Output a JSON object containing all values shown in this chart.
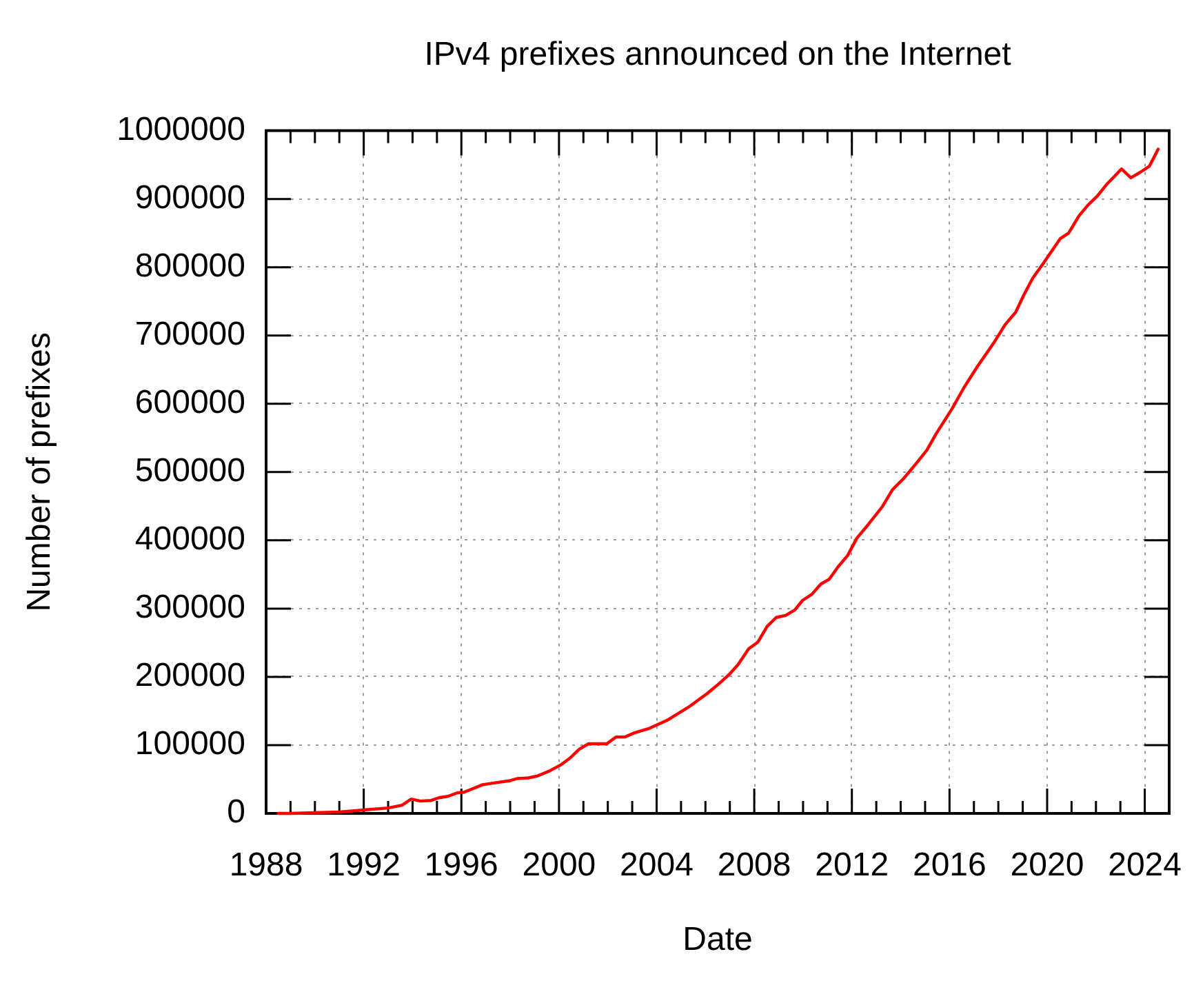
{
  "chart_data": {
    "type": "line",
    "title": "IPv4 prefixes announced on the Internet",
    "xlabel": "Date",
    "ylabel": "Number of prefixes",
    "x": [
      1988.5,
      1989,
      1990,
      1991,
      1992,
      1993,
      1993.57,
      1993.94,
      1994.32,
      1994.76,
      1995.08,
      1995.45,
      1995.83,
      1996.11,
      1996.87,
      1997.43,
      1998,
      1998.28,
      1998.75,
      1999.13,
      1999.6,
      2000.07,
      2000.45,
      2000.83,
      2001.21,
      2001.96,
      2002.34,
      2002.71,
      2003.09,
      2003.66,
      2004.41,
      2005.36,
      2006.05,
      2006.49,
      2006.96,
      2007.34,
      2007.77,
      2008.15,
      2008.53,
      2008.9,
      2009.28,
      2009.66,
      2009.98,
      2010.36,
      2010.73,
      2011.07,
      2011.43,
      2011.83,
      2012.2,
      2012.62,
      2013.24,
      2013.66,
      2014.13,
      2014.6,
      2015.07,
      2015.45,
      2016.11,
      2016.58,
      2017.15,
      2017.81,
      2018.28,
      2018.71,
      2019.04,
      2019.41,
      2019.79,
      2020.54,
      2020.88,
      2021.3,
      2021.67,
      2022.05,
      2022.43,
      2023.05,
      2023.43,
      2023.81,
      2024.19,
      2024.55
    ],
    "series": [
      {
        "color": "#ff0000",
        "values": [
          0,
          0,
          1000,
          2000,
          5000,
          8000,
          12000,
          21000,
          18000,
          19000,
          23000,
          25000,
          30000,
          31000,
          42000,
          45000,
          48000,
          51000,
          52000,
          55000,
          62000,
          71000,
          81000,
          94000,
          102000,
          102000,
          112000,
          112000,
          118000,
          124000,
          136000,
          157000,
          175000,
          188000,
          203000,
          218000,
          241000,
          251000,
          274000,
          287000,
          290000,
          298000,
          312000,
          321000,
          336000,
          343000,
          361000,
          378000,
          403000,
          421000,
          449000,
          474000,
          491000,
          511000,
          532000,
          556000,
          593000,
          623000,
          655000,
          689000,
          716000,
          734000,
          759000,
          784000,
          803000,
          842000,
          850000,
          875000,
          891000,
          904000,
          921000,
          944000,
          931000,
          939000,
          948000,
          973000
        ]
      }
    ],
    "xlim": [
      1988,
      2025
    ],
    "xticks": [
      1988,
      {
        "value": 1989,
        "label": null
      },
      {
        "value": 1990,
        "label": null
      },
      {
        "value": 1991,
        "label": null
      },
      1992,
      {
        "value": 1993,
        "label": null
      },
      {
        "value": 1994,
        "label": null
      },
      {
        "value": 1995,
        "label": null
      },
      1996,
      {
        "value": 1997,
        "label": null
      },
      {
        "value": 1998,
        "label": null
      },
      {
        "value": 1999,
        "label": null
      },
      2000,
      {
        "value": 2001,
        "label": null
      },
      {
        "value": 2002,
        "label": null
      },
      {
        "value": 2003,
        "label": null
      },
      2004,
      {
        "value": 2005,
        "label": null
      },
      {
        "value": 2006,
        "label": null
      },
      {
        "value": 2007,
        "label": null
      },
      2008,
      {
        "value": 2009,
        "label": null
      },
      {
        "value": 2010,
        "label": null
      },
      {
        "value": 2011,
        "label": null
      },
      2012,
      {
        "value": 2013,
        "label": null
      },
      {
        "value": 2014,
        "label": null
      },
      {
        "value": 2015,
        "label": null
      },
      2016,
      {
        "value": 2017,
        "label": null
      },
      {
        "value": 2018,
        "label": null
      },
      {
        "value": 2019,
        "label": null
      },
      2020,
      {
        "value": 2021,
        "label": null
      },
      {
        "value": 2022,
        "label": null
      },
      {
        "value": 2023,
        "label": null
      },
      2024
    ],
    "ylim": [
      0,
      1000000
    ],
    "yticks": [
      0,
      100000,
      200000,
      300000,
      400000,
      500000,
      600000,
      700000,
      800000,
      900000,
      1000000
    ],
    "grid": true
  }
}
